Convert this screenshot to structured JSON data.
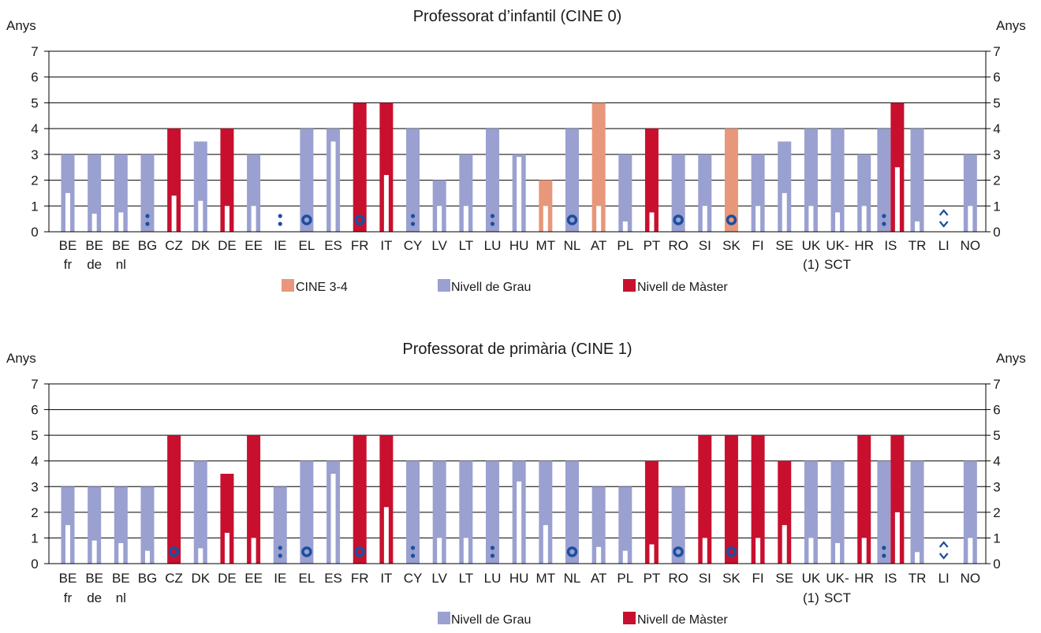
{
  "colors": {
    "cine34": "#e8977a",
    "grau": "#9aa0d0",
    "master": "#c8102e",
    "symbol": "#1a4fa0",
    "axis": "#000000"
  },
  "chart_data": [
    {
      "type": "bar",
      "title": "Professorat d’infantil (CINE 0)",
      "ylabel_left": "Anys",
      "ylabel_right": "Anys",
      "ylim": [
        0,
        7
      ],
      "yticks": [
        "0",
        "1",
        "2",
        "3",
        "4",
        "5",
        "6",
        "7"
      ],
      "grid": true,
      "categories": [
        [
          "BE",
          "fr"
        ],
        [
          "BE",
          "de"
        ],
        [
          "BE",
          "nl"
        ],
        [
          "BG"
        ],
        [
          "CZ"
        ],
        [
          "DK"
        ],
        [
          "DE"
        ],
        [
          "EE"
        ],
        [
          "IE"
        ],
        [
          "EL"
        ],
        [
          "ES"
        ],
        [
          "FR"
        ],
        [
          "IT"
        ],
        [
          "CY"
        ],
        [
          "LV"
        ],
        [
          "LT"
        ],
        [
          "LU"
        ],
        [
          "HU"
        ],
        [
          "MT"
        ],
        [
          "NL"
        ],
        [
          "AT"
        ],
        [
          "PL"
        ],
        [
          "PT"
        ],
        [
          "RO"
        ],
        [
          "SI"
        ],
        [
          "SK"
        ],
        [
          "FI"
        ],
        [
          "SE"
        ],
        [
          "UK",
          "(1)"
        ],
        [
          "UK-",
          "SCT"
        ],
        [
          "HR"
        ],
        [
          "IS"
        ],
        [
          "TR"
        ],
        [
          "LI"
        ],
        [
          "NO"
        ]
      ],
      "levels": [
        "G",
        "G",
        "G",
        "G",
        "M",
        "G",
        "M",
        "G",
        null,
        "G",
        "G",
        "M",
        "M",
        "G",
        "G",
        "G",
        "G",
        "G",
        "C",
        "G",
        "C",
        "G",
        "M",
        "G",
        "G",
        "C",
        "G",
        "G",
        "G",
        "G",
        "G",
        "G;M",
        "G",
        null,
        "G"
      ],
      "values": [
        3,
        3,
        3,
        3,
        4,
        3.5,
        4,
        3,
        null,
        4,
        4,
        5,
        5,
        4,
        2,
        3,
        4,
        3,
        2,
        4,
        5,
        3,
        4,
        3,
        3,
        4,
        3,
        3.5,
        4,
        4,
        3,
        "4;5",
        4,
        null,
        3
      ],
      "practical": [
        1.5,
        0.7,
        0.75,
        null,
        1.4,
        1.2,
        1,
        1,
        null,
        null,
        3.5,
        null,
        2.2,
        null,
        1,
        1,
        null,
        2.9,
        1,
        null,
        1,
        0.4,
        0.75,
        null,
        1,
        null,
        1,
        1.5,
        1,
        0.75,
        1,
        2.5,
        0.4,
        null,
        1
      ],
      "symbols": [
        null,
        null,
        null,
        ":",
        null,
        null,
        null,
        null,
        ":",
        "o",
        null,
        "o",
        null,
        ":",
        null,
        null,
        ":",
        null,
        null,
        "o",
        null,
        null,
        null,
        "o",
        null,
        "o",
        null,
        null,
        null,
        null,
        null,
        ":",
        null,
        "^",
        null
      ],
      "legend": [
        {
          "label": "CINE 3-4",
          "color": "#e8977a"
        },
        {
          "label": "Nivell de Grau",
          "color": "#9aa0d0"
        },
        {
          "label": "Nivell de Màster",
          "color": "#c8102e"
        }
      ]
    },
    {
      "type": "bar",
      "title": "Professorat de primària (CINE 1)",
      "ylabel_left": "Anys",
      "ylabel_right": "Anys",
      "ylim": [
        0,
        7
      ],
      "yticks": [
        "0",
        "1",
        "2",
        "3",
        "4",
        "5",
        "6",
        "7"
      ],
      "grid": true,
      "categories": [
        [
          "BE",
          "fr"
        ],
        [
          "BE",
          "de"
        ],
        [
          "BE",
          "nl"
        ],
        [
          "BG"
        ],
        [
          "CZ"
        ],
        [
          "DK"
        ],
        [
          "DE"
        ],
        [
          "EE"
        ],
        [
          "IE"
        ],
        [
          "EL"
        ],
        [
          "ES"
        ],
        [
          "FR"
        ],
        [
          "IT"
        ],
        [
          "CY"
        ],
        [
          "LV"
        ],
        [
          "LT"
        ],
        [
          "LU"
        ],
        [
          "HU"
        ],
        [
          "MT"
        ],
        [
          "NL"
        ],
        [
          "AT"
        ],
        [
          "PL"
        ],
        [
          "PT"
        ],
        [
          "RO"
        ],
        [
          "SI"
        ],
        [
          "SK"
        ],
        [
          "FI"
        ],
        [
          "SE"
        ],
        [
          "UK",
          "(1)"
        ],
        [
          "UK-",
          "SCT"
        ],
        [
          "HR"
        ],
        [
          "IS"
        ],
        [
          "TR"
        ],
        [
          "LI"
        ],
        [
          "NO"
        ]
      ],
      "levels": [
        "G",
        "G",
        "G",
        "G",
        "M",
        "G",
        "M",
        "M",
        "G",
        "G",
        "G",
        "M",
        "M",
        "G",
        "G",
        "G",
        "G",
        "G",
        "G",
        "G",
        "G",
        "G",
        "M",
        "G",
        "M",
        "M",
        "M",
        "M",
        "G",
        "G",
        "M",
        "G;M",
        "G",
        null,
        "G"
      ],
      "values": [
        3,
        3,
        3,
        3,
        5,
        4,
        3.5,
        5,
        3,
        4,
        4,
        5,
        5,
        4,
        4,
        4,
        4,
        4,
        4,
        4,
        3,
        3,
        4,
        3,
        5,
        5,
        5,
        4,
        4,
        4,
        5,
        "4;5",
        4,
        null,
        4
      ],
      "practical": [
        1.5,
        0.9,
        0.8,
        0.5,
        null,
        0.6,
        1.2,
        1,
        null,
        null,
        3.5,
        null,
        2.2,
        null,
        1,
        1,
        null,
        3.2,
        1.5,
        null,
        0.65,
        0.5,
        0.75,
        null,
        1,
        null,
        1,
        1.5,
        1,
        0.8,
        1,
        2,
        0.45,
        null,
        1
      ],
      "symbols": [
        null,
        null,
        null,
        null,
        "o",
        null,
        null,
        null,
        ":",
        "o",
        null,
        "o",
        null,
        ":",
        null,
        null,
        ":",
        null,
        null,
        "o",
        null,
        null,
        null,
        "o",
        null,
        "o",
        null,
        null,
        null,
        null,
        null,
        ":",
        null,
        "^",
        null
      ],
      "legend": [
        {
          "label": "Nivell de Grau",
          "color": "#9aa0d0"
        },
        {
          "label": "Nivell de Màster",
          "color": "#c8102e"
        }
      ]
    }
  ]
}
